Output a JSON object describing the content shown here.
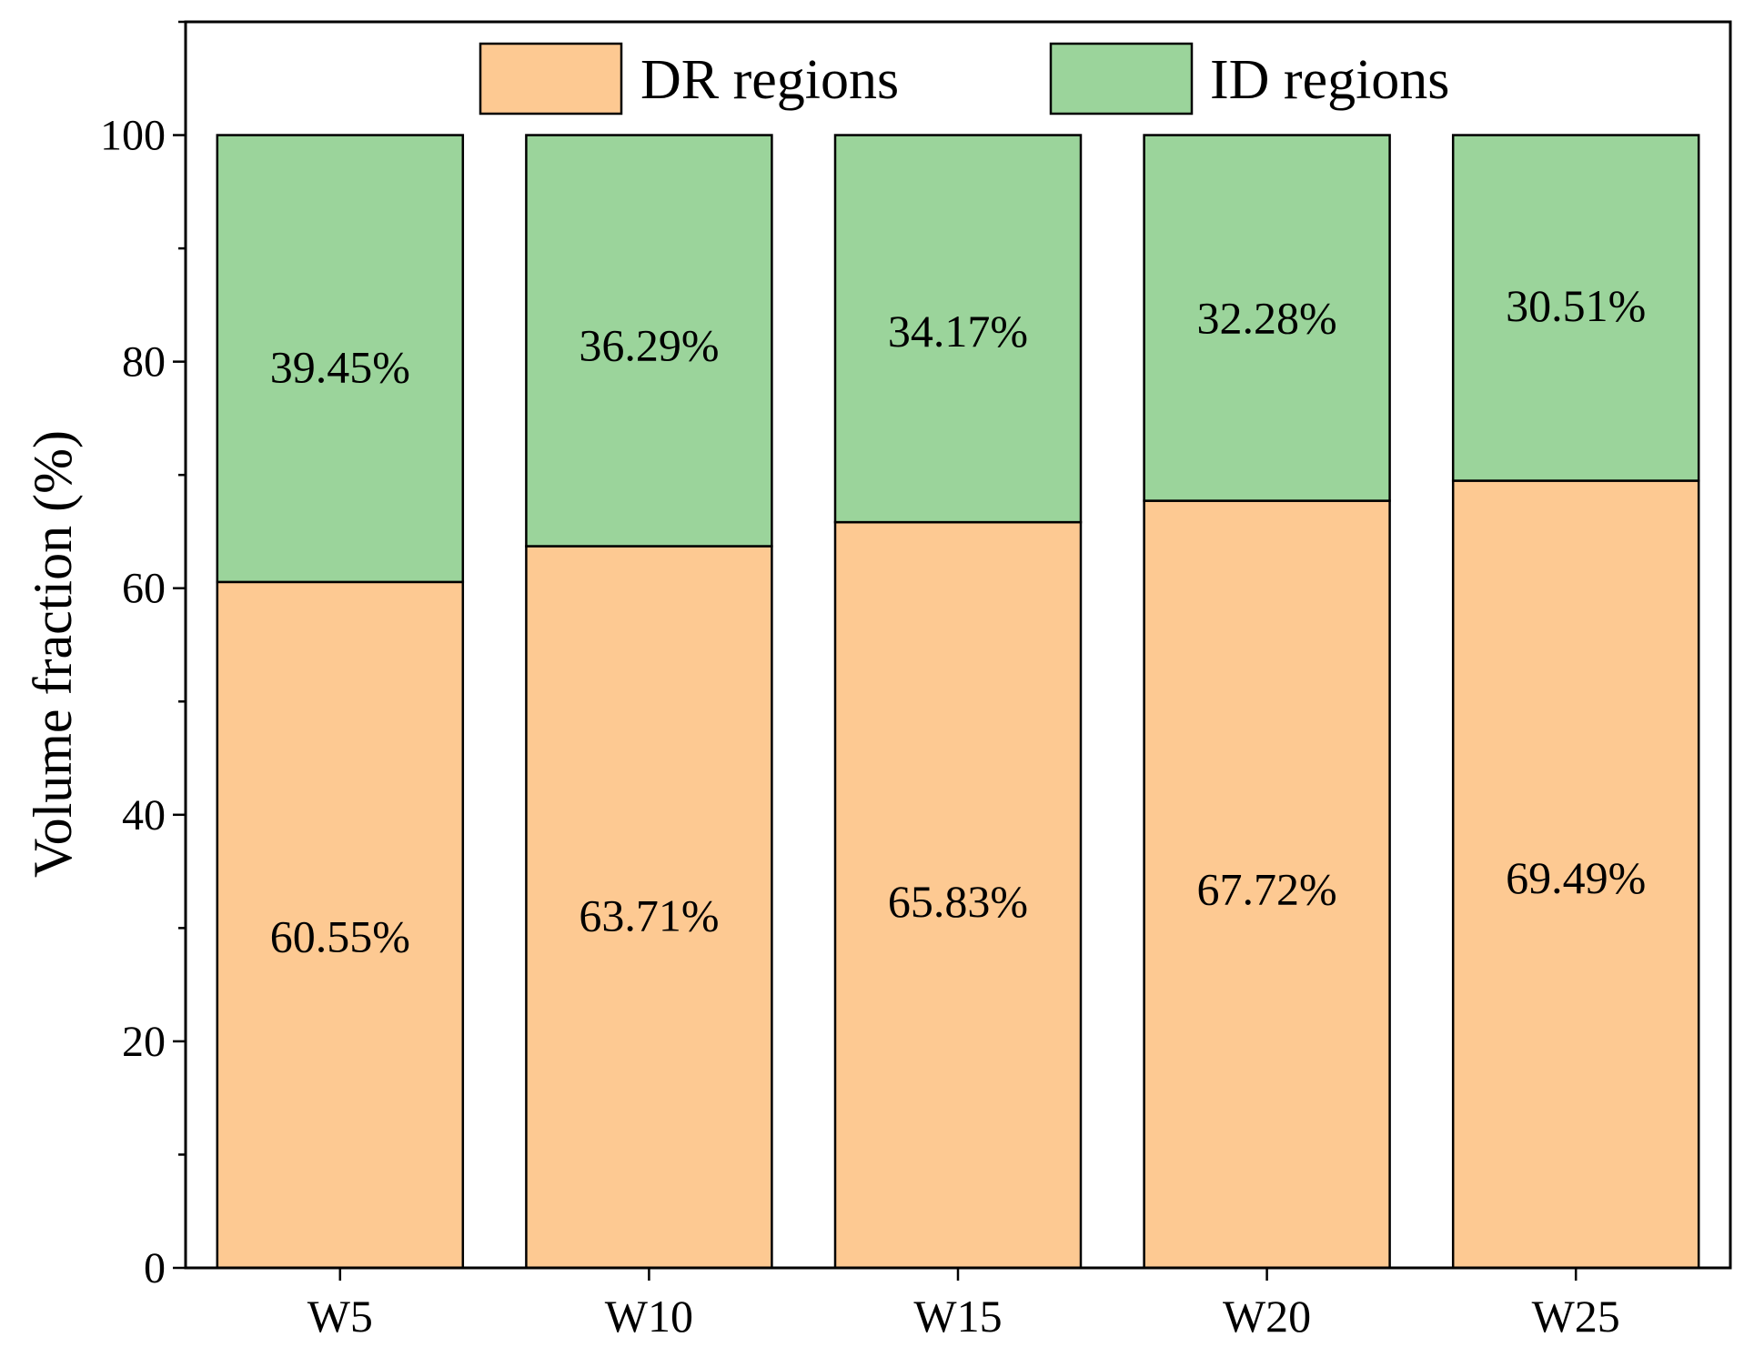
{
  "chart_data": {
    "type": "bar",
    "stacked": true,
    "categories": [
      "W5",
      "W10",
      "W15",
      "W20",
      "W25"
    ],
    "series": [
      {
        "name": "DR regions",
        "values": [
          60.55,
          63.71,
          65.83,
          67.72,
          69.49
        ],
        "labels": [
          "60.55%",
          "63.71%",
          "65.83%",
          "67.72%",
          "69.49%"
        ],
        "color": "#FDC992"
      },
      {
        "name": "ID regions",
        "values": [
          39.45,
          36.29,
          34.17,
          32.28,
          30.51
        ],
        "labels": [
          "39.45%",
          "36.29%",
          "34.17%",
          "32.28%",
          "30.51%"
        ],
        "color": "#9BD49B"
      }
    ],
    "title": "",
    "xlabel": "",
    "ylabel": "Volume fraction (%)",
    "ylim": [
      0,
      110
    ],
    "yticks": [
      0,
      20,
      40,
      60,
      80,
      100
    ],
    "grid": false,
    "legend_position": "top-center"
  }
}
